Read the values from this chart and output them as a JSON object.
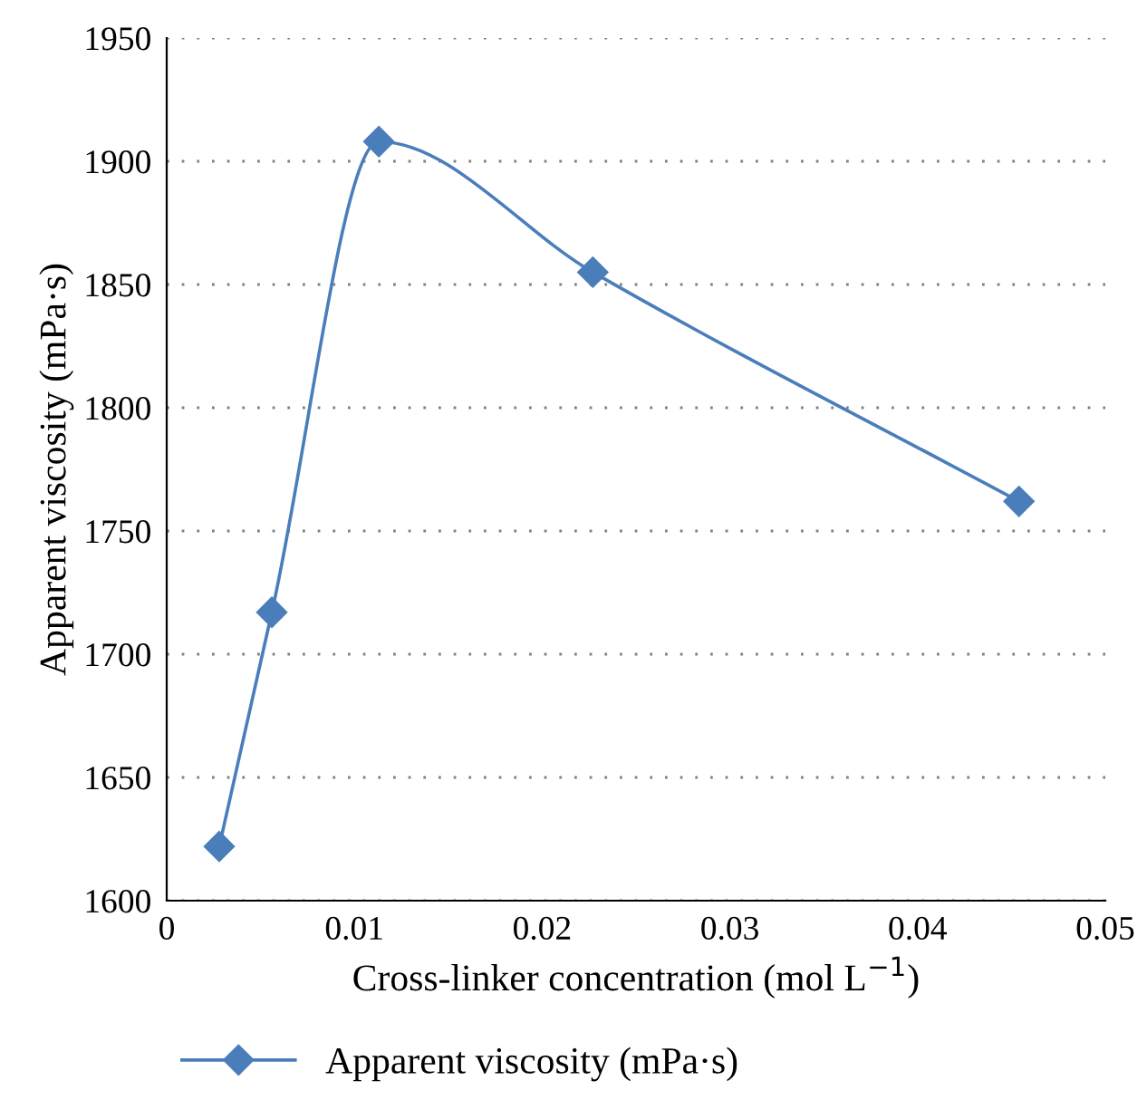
{
  "chart_data": {
    "type": "line",
    "xlabel": "Cross-linker concentration (mol L$^{−1}$)",
    "ylabel": "Apparent viscosity (mPa·s)",
    "x": [
      0.0028,
      0.0056,
      0.0113,
      0.0227,
      0.0454
    ],
    "series": [
      {
        "name": "Apparent viscosity (mPa·s)",
        "color": "#4a7ebb",
        "values": [
          1622,
          1717,
          1908,
          1855,
          1762
        ]
      }
    ],
    "xlim": [
      0,
      0.05
    ],
    "xticks": [
      0,
      0.01,
      0.02,
      0.03,
      0.04,
      0.05
    ],
    "ylim": [
      1600,
      1950
    ],
    "yticks": [
      1600,
      1650,
      1700,
      1750,
      1800,
      1850,
      1900,
      1950
    ],
    "grid": "y",
    "legend": "bottom",
    "marker": "diamond",
    "line_style": "solid"
  }
}
